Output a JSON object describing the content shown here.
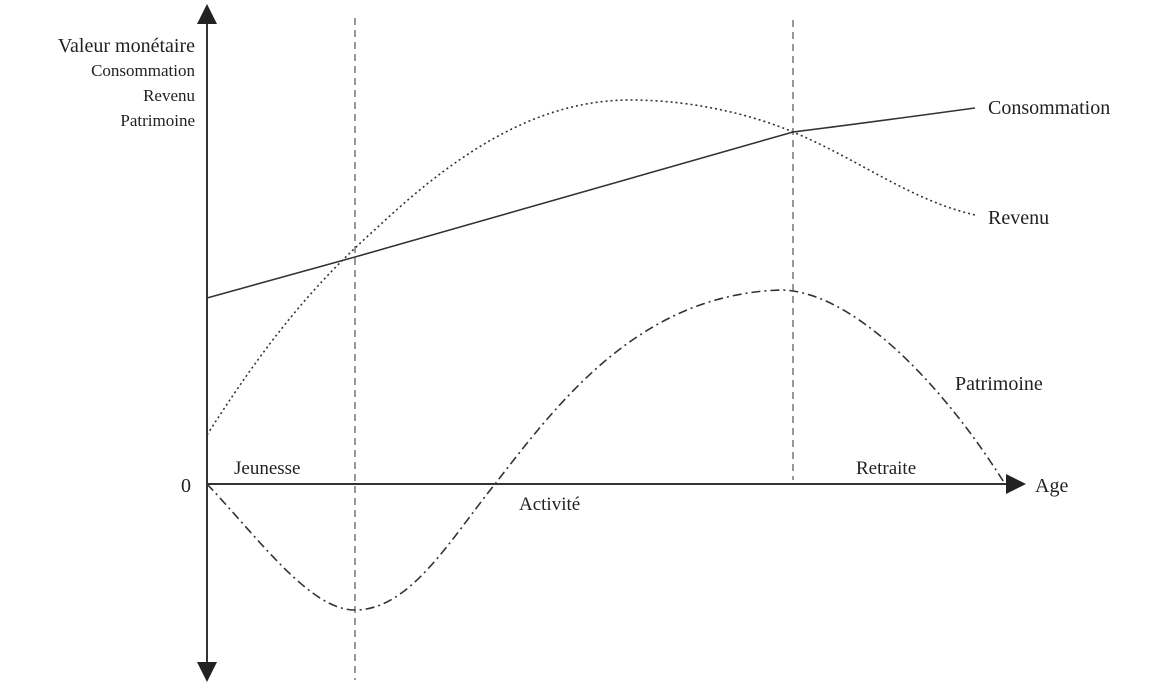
{
  "axis": {
    "y_label": [
      "Valeur monétaire",
      "Consommation",
      "Revenu",
      "Patrimoine"
    ],
    "origin": "0",
    "x_label": "Age"
  },
  "phases": [
    "Jeunesse",
    "Activité",
    "Retraite"
  ],
  "curves": [
    "Consommation",
    "Revenu",
    "Patrimoine"
  ]
}
